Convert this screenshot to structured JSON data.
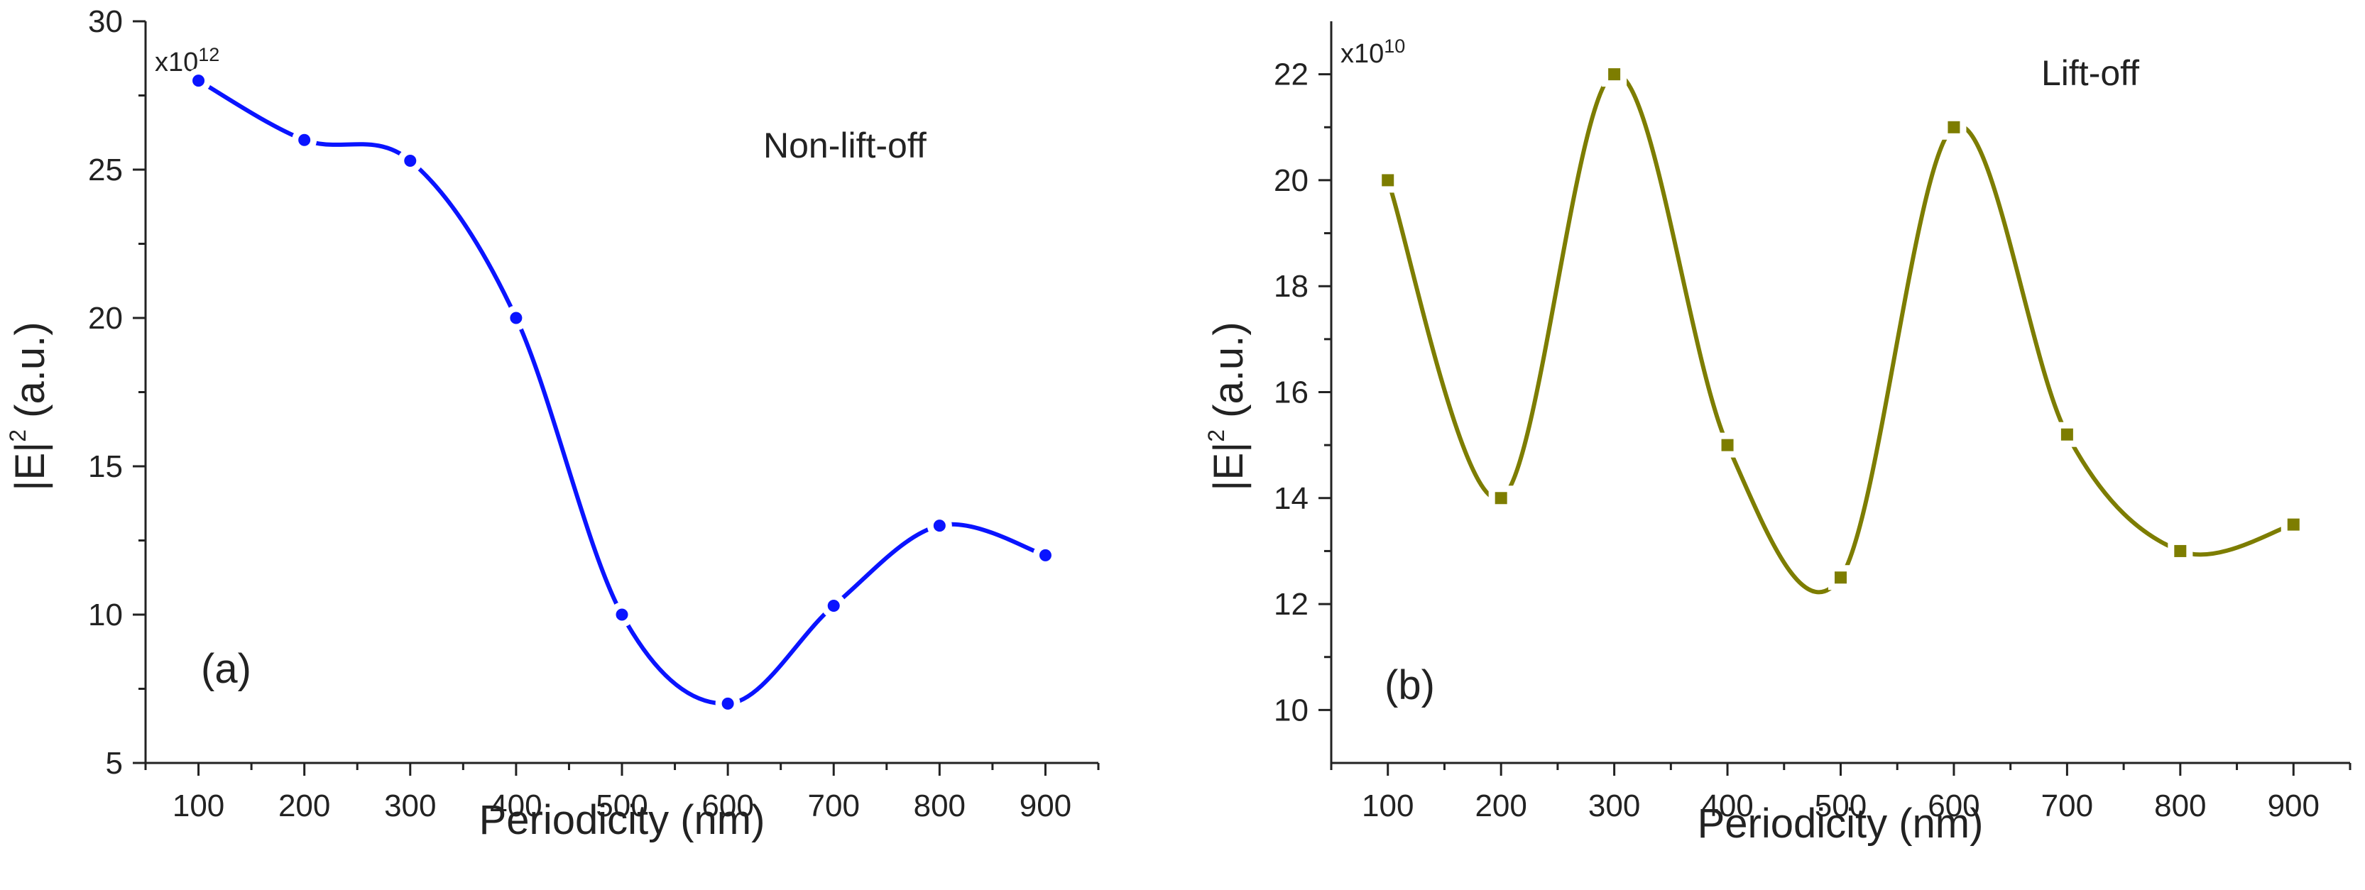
{
  "chart_data": [
    {
      "type": "line",
      "panel_label": "(a)",
      "annotation": "Non-lift-off",
      "xlabel": "Periodicity (nm)",
      "ylabel_main": "|E|",
      "ylabel_sup": "2",
      "ylabel_unit": " (a.u.)",
      "multiplier_base": "x10",
      "multiplier_exp": "12",
      "xlim": [
        50,
        950
      ],
      "ylim": [
        5,
        30
      ],
      "xticks": [
        100,
        200,
        300,
        400,
        500,
        600,
        700,
        800,
        900
      ],
      "yticks": [
        5,
        10,
        15,
        20,
        25,
        30
      ],
      "grid": false,
      "marker": "circle",
      "color": "#0a14ff",
      "series": [
        {
          "name": "Non-lift-off",
          "x": [
            100,
            200,
            300,
            400,
            500,
            600,
            700,
            800,
            900
          ],
          "y": [
            28,
            26,
            25.3,
            20,
            10,
            7,
            10.3,
            13,
            12
          ]
        }
      ]
    },
    {
      "type": "line",
      "panel_label": "(b)",
      "annotation": "Lift-off",
      "xlabel": "Periodicity (nm)",
      "ylabel_main": "|E|",
      "ylabel_sup": "2",
      "ylabel_unit": " (a.u.)",
      "multiplier_base": "x10",
      "multiplier_exp": "10",
      "xlim": [
        50,
        950
      ],
      "ylim": [
        9,
        23
      ],
      "xticks": [
        100,
        200,
        300,
        400,
        500,
        600,
        700,
        800,
        900
      ],
      "yticks": [
        10,
        12,
        14,
        16,
        18,
        20,
        22
      ],
      "grid": false,
      "marker": "square",
      "color": "#7d7d00",
      "series": [
        {
          "name": "Lift-off",
          "x": [
            100,
            200,
            300,
            400,
            500,
            600,
            700,
            800,
            900
          ],
          "y": [
            20,
            14,
            22,
            15,
            12.5,
            21,
            15.2,
            13,
            13.5
          ]
        }
      ]
    }
  ]
}
